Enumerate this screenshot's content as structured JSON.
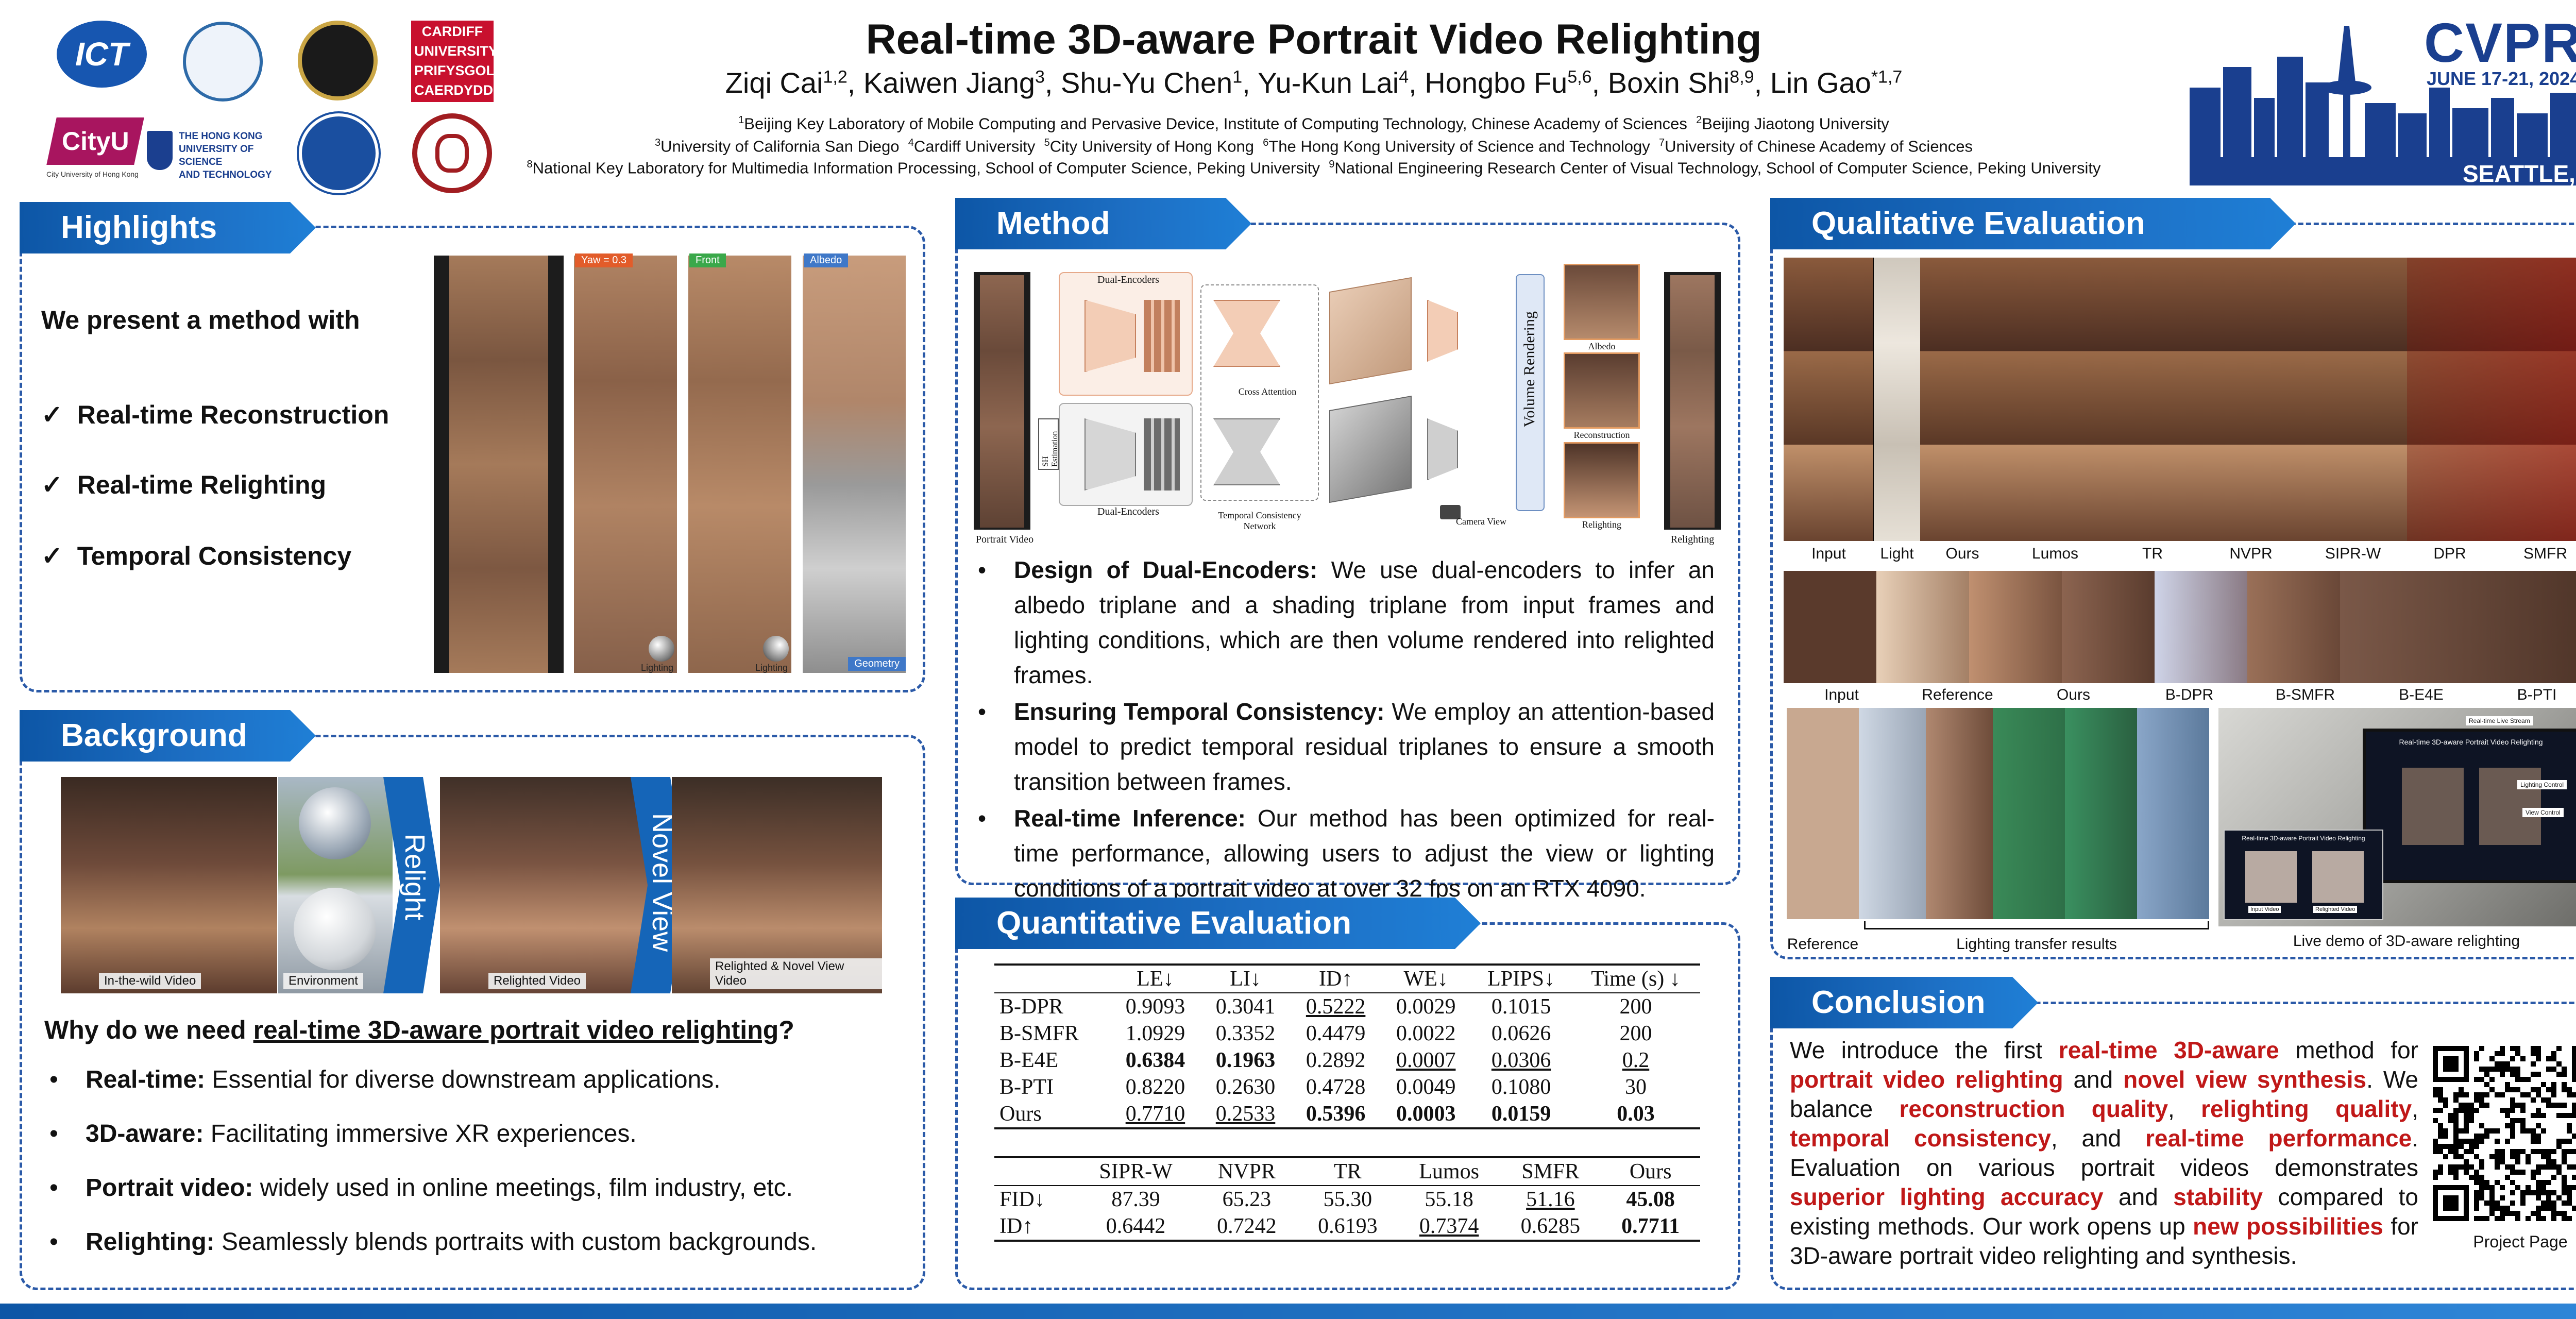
{
  "header": {
    "title": "Real-time 3D-aware Portrait Video Relighting",
    "authors": [
      {
        "name": "Ziqi Cai",
        "sup": "1,2"
      },
      {
        "name": "Kaiwen Jiang",
        "sup": "3"
      },
      {
        "name": "Shu-Yu Chen",
        "sup": "1"
      },
      {
        "name": "Yu-Kun Lai",
        "sup": "4"
      },
      {
        "name": "Hongbo Fu",
        "sup": "5,6"
      },
      {
        "name": "Boxin Shi",
        "sup": "8,9"
      },
      {
        "name": "Lin Gao",
        "sup": "*1,7"
      }
    ],
    "affiliations": [
      [
        {
          "sup": "1",
          "text": "Beijing Key Laboratory of Mobile Computing and Pervasive Device, Institute of Computing Technology, Chinese Academy of Sciences"
        },
        {
          "sup": "2",
          "text": "Beijing Jiaotong University"
        }
      ],
      [
        {
          "sup": "3",
          "text": "University of California San Diego"
        },
        {
          "sup": "4",
          "text": "Cardiff University"
        },
        {
          "sup": "5",
          "text": "City University of Hong Kong"
        },
        {
          "sup": "6",
          "text": "The Hong Kong University of Science and Technology"
        },
        {
          "sup": "7",
          "text": "University of Chinese Academy of Sciences"
        }
      ],
      [
        {
          "sup": "8",
          "text": "National Key Laboratory for Multimedia Information Processing, School of Computer Science, Peking University"
        },
        {
          "sup": "9",
          "text": "National Engineering Research Center of Visual Technology, School of Computer Science, Peking University"
        }
      ]
    ],
    "logos": {
      "ict": "ICT",
      "cardiff": [
        "CARDIFF",
        "UNIVERSITY",
        "PRIFYSGOL",
        "CAERDYDD"
      ],
      "cityu": "CityU",
      "cityu_sub": "City University of Hong Kong",
      "hkust": [
        "THE HONG KONG",
        "UNIVERSITY OF SCIENCE",
        "AND TECHNOLOGY"
      ]
    },
    "conference": {
      "name": "CVPR",
      "dates": "JUNE 17-21, 2024",
      "location": "SEATTLE, WA"
    }
  },
  "highlights": {
    "heading": "Highlights",
    "intro": "We present a method with",
    "items": [
      "Real-time Reconstruction",
      "Real-time Relighting",
      "Temporal Consistency"
    ],
    "figure_tags": [
      "Yaw = 0.3",
      "Front",
      "Albedo",
      "Geometry"
    ],
    "figure_captions": [
      "Lighting",
      "Lighting"
    ]
  },
  "background": {
    "heading": "Background",
    "figure_labels": [
      "In-the-wild Video",
      "Environment",
      "Relighted Video",
      "Relighted & Novel View Video"
    ],
    "arrows": [
      "Relight",
      "Novel View"
    ],
    "question_prefix": "Why do we need ",
    "question_link": "real-time 3D-aware portrait video relighting",
    "question_suffix": "?",
    "bullets": [
      {
        "term": "Real-time:",
        "text": " Essential for diverse downstream applications."
      },
      {
        "term": "3D-aware:",
        "text": " Facilitating immersive XR experiences."
      },
      {
        "term": "Portrait video:",
        "text": " widely used in online meetings, film industry, etc."
      },
      {
        "term": "Relighting:",
        "text": " Seamlessly blends portraits with custom backgrounds."
      }
    ]
  },
  "method": {
    "heading": "Method",
    "diagram_labels": {
      "dual_encoders_top": "Dual-Encoders",
      "dual_encoders_bottom": "Dual-Encoders",
      "cross_attention": "Cross Attention",
      "tcn": "Temporal Consistency Network",
      "volume_rendering": "Volume Rendering",
      "portrait_video": "Portrait Video",
      "sh_estimation": "SH Estimation",
      "camera_view": "Camera View",
      "albedo": "Albedo",
      "reconstruction": "Reconstruction",
      "relighting": "Relighting",
      "relighting_out": "Relighting"
    },
    "bullets": [
      {
        "term": "Design of Dual-Encoders:",
        "text": " We use dual-encoders to infer an albedo triplane and a shading triplane from input frames and lighting conditions, which are then volume rendered into relighted frames."
      },
      {
        "term": "Ensuring Temporal Consistency:",
        "text": " We employ an attention-based model to predict temporal residual triplanes to ensure a smooth transition between frames."
      },
      {
        "term": "Real-time Inference:",
        "text": " Our method has been optimized for real-time performance, allowing users to adjust the view or lighting conditions of a portrait video at over 32 fps on an RTX 4090."
      }
    ]
  },
  "quantitative": {
    "heading": "Quantitative Evaluation",
    "table1": {
      "headers": [
        "",
        "LE↓",
        "LI↓",
        "ID↑",
        "WE↓",
        "LPIPS↓",
        "Time (s) ↓"
      ],
      "rows": [
        [
          "B-DPR",
          "0.9093",
          "0.3041",
          "0.5222",
          "0.0029",
          "0.1015",
          "200"
        ],
        [
          "B-SMFR",
          "1.0929",
          "0.3352",
          "0.4479",
          "0.0022",
          "0.0626",
          "200"
        ],
        [
          "B-E4E",
          "0.6384",
          "0.1963",
          "0.2892",
          "0.0007",
          "0.0306",
          "0.2"
        ],
        [
          "B-PTI",
          "0.8220",
          "0.2630",
          "0.4728",
          "0.0049",
          "0.1080",
          "30"
        ],
        [
          "Ours",
          "0.7710",
          "0.2533",
          "0.5396",
          "0.0003",
          "0.0159",
          "0.03"
        ]
      ]
    },
    "table2": {
      "headers": [
        "",
        "SIPR-W",
        "NVPR",
        "TR",
        "Lumos",
        "SMFR",
        "Ours"
      ],
      "rows": [
        [
          "FID↓",
          "87.39",
          "65.23",
          "55.30",
          "55.18",
          "51.16",
          "45.08"
        ],
        [
          "ID↑",
          "0.6442",
          "0.7242",
          "0.6193",
          "0.7374",
          "0.6285",
          "0.7711"
        ]
      ]
    }
  },
  "qualitative": {
    "heading": "Qualitative Evaluation",
    "row_labels_1": [
      "Input",
      "Light",
      "Ours",
      "Lumos",
      "TR",
      "NVPR",
      "SIPR-W",
      "DPR",
      "SMFR"
    ],
    "row_labels_2": [
      "Input",
      "Reference",
      "Ours",
      "B-DPR",
      "B-SMFR",
      "B-E4E",
      "B-PTI"
    ],
    "transfer_labels": [
      "Reference",
      "Lighting transfer results"
    ],
    "demo_label": "Live demo of 3D-aware relighting",
    "demo_screen": {
      "title": "Real-time 3D-aware Portrait Video Relighting",
      "live_stream": "Real-time Live Stream",
      "lighting_control": "Lighting Control",
      "view_control": "View Control",
      "input_video": "Input Video",
      "relighted_video": "Relighted Video"
    }
  },
  "conclusion": {
    "heading": "Conclusion",
    "segments": [
      {
        "t": "We introduce the first "
      },
      {
        "t": "real-time 3D-aware",
        "h": true
      },
      {
        "t": " method for "
      },
      {
        "t": "portrait video relighting",
        "h": true
      },
      {
        "t": " and "
      },
      {
        "t": "novel view synthesis",
        "h": true
      },
      {
        "t": ". We balance "
      },
      {
        "t": "reconstruction quality",
        "h": true
      },
      {
        "t": ", "
      },
      {
        "t": "relighting quality",
        "h": true
      },
      {
        "t": ", "
      },
      {
        "t": "temporal consistency",
        "h": true
      },
      {
        "t": ", and "
      },
      {
        "t": "real-time performance",
        "h": true
      },
      {
        "t": ". Evaluation on various portrait videos demonstrates "
      },
      {
        "t": "superior lighting accuracy",
        "h": true
      },
      {
        "t": " and "
      },
      {
        "t": "stability",
        "h": true
      },
      {
        "t": " compared to existing methods. Our work opens up "
      },
      {
        "t": "new possibilities",
        "h": true
      },
      {
        "t": " for 3D-aware portrait video relighting and synthesis."
      }
    ],
    "qr_caption": "Project Page"
  },
  "colors": {
    "accent": "#0d56a6",
    "panel_border": "#2b5aa8",
    "highlight_red": "#c01818",
    "cvpr_blue": "#1a3f8f"
  }
}
